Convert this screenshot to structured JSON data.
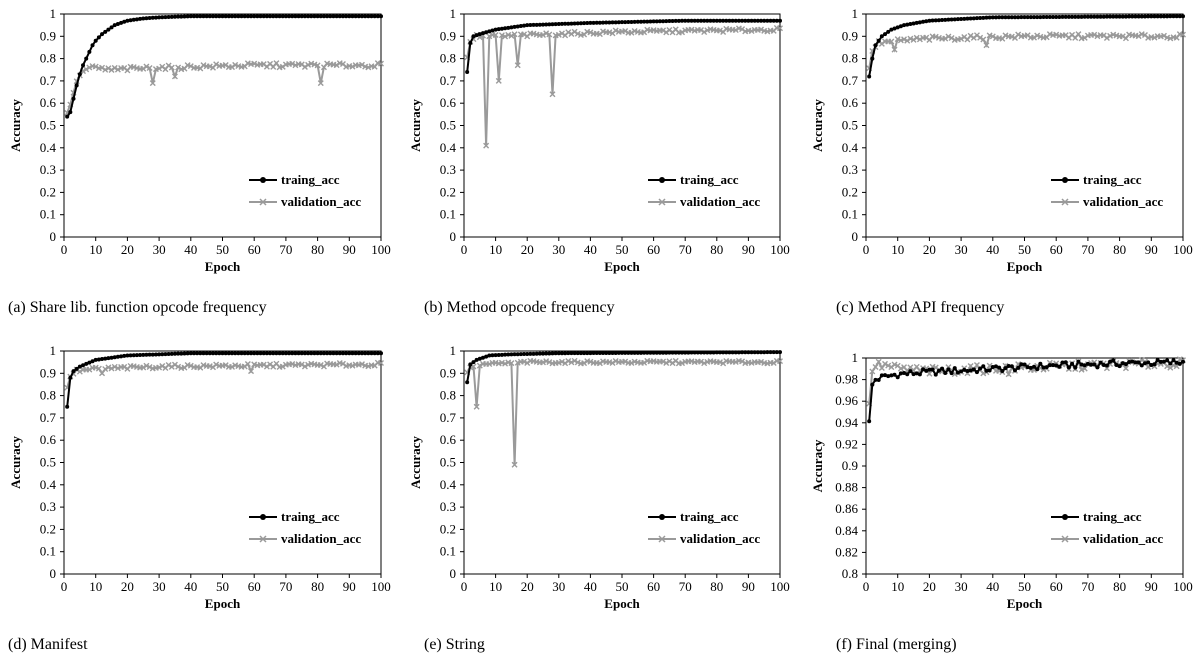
{
  "colors": {
    "train": "#000000",
    "validation": "#9a9a9a",
    "axis": "#000000"
  },
  "chart_data": [
    {
      "type": "line",
      "caption": "(a)  Share lib. function opcode frequency",
      "xlabel": "Epoch",
      "ylabel": "Accuracy",
      "xlim": [
        0,
        100
      ],
      "ylim": [
        0,
        1
      ],
      "x_ticks": [
        "0",
        "10",
        "20",
        "30",
        "40",
        "50",
        "60",
        "70",
        "80",
        "90",
        "100"
      ],
      "y_ticks": [
        "0",
        "0.1",
        "0.2",
        "0.3",
        "0.4",
        "0.5",
        "0.6",
        "0.7",
        "0.8",
        "0.9",
        "1"
      ],
      "legend_position": "lower-right",
      "series": [
        {
          "name": "traing_acc",
          "marker": "circle",
          "anchors": [
            [
              1,
              0.54
            ],
            [
              2,
              0.56
            ],
            [
              3,
              0.62
            ],
            [
              4,
              0.68
            ],
            [
              5,
              0.73
            ],
            [
              6,
              0.77
            ],
            [
              7,
              0.8
            ],
            [
              8,
              0.83
            ],
            [
              9,
              0.86
            ],
            [
              10,
              0.88
            ],
            [
              12,
              0.91
            ],
            [
              14,
              0.93
            ],
            [
              16,
              0.95
            ],
            [
              18,
              0.96
            ],
            [
              20,
              0.97
            ],
            [
              25,
              0.98
            ],
            [
              30,
              0.985
            ],
            [
              40,
              0.99
            ],
            [
              60,
              0.99
            ],
            [
              100,
              0.99
            ]
          ]
        },
        {
          "name": "validation_acc",
          "marker": "cross",
          "noise": 0.01,
          "base": [
            [
              1,
              0.55
            ],
            [
              3,
              0.65
            ],
            [
              5,
              0.73
            ],
            [
              8,
              0.76
            ],
            [
              15,
              0.75
            ],
            [
              30,
              0.76
            ],
            [
              60,
              0.77
            ],
            [
              100,
              0.77
            ]
          ],
          "dips": [
            [
              28,
              0.69
            ],
            [
              35,
              0.72
            ],
            [
              81,
              0.69
            ]
          ]
        }
      ]
    },
    {
      "type": "line",
      "caption": "(b)  Method opcode frequency",
      "xlabel": "Epoch",
      "ylabel": "Accuracy",
      "xlim": [
        0,
        100
      ],
      "ylim": [
        0,
        1
      ],
      "x_ticks": [
        "0",
        "10",
        "20",
        "30",
        "40",
        "50",
        "60",
        "70",
        "80",
        "90",
        "100"
      ],
      "y_ticks": [
        "0",
        "0.1",
        "0.2",
        "0.3",
        "0.4",
        "0.5",
        "0.6",
        "0.7",
        "0.8",
        "0.9",
        "1"
      ],
      "legend_position": "lower-right",
      "series": [
        {
          "name": "traing_acc",
          "marker": "circle",
          "anchors": [
            [
              1,
              0.74
            ],
            [
              2,
              0.87
            ],
            [
              3,
              0.9
            ],
            [
              5,
              0.91
            ],
            [
              10,
              0.93
            ],
            [
              20,
              0.95
            ],
            [
              40,
              0.96
            ],
            [
              70,
              0.97
            ],
            [
              100,
              0.97
            ]
          ]
        },
        {
          "name": "validation_acc",
          "marker": "cross",
          "noise": 0.008,
          "base": [
            [
              1,
              0.8
            ],
            [
              2,
              0.88
            ],
            [
              4,
              0.9
            ],
            [
              10,
              0.9
            ],
            [
              30,
              0.91
            ],
            [
              50,
              0.92
            ],
            [
              100,
              0.93
            ]
          ],
          "dips": [
            [
              7,
              0.41
            ],
            [
              11,
              0.7
            ],
            [
              17,
              0.77
            ],
            [
              28,
              0.64
            ]
          ]
        }
      ]
    },
    {
      "type": "line",
      "caption": "(c)  Method API frequency",
      "xlabel": "Epoch",
      "ylabel": "Accuracy",
      "xlim": [
        0,
        100
      ],
      "ylim": [
        0,
        1
      ],
      "x_ticks": [
        "0",
        "10",
        "20",
        "30",
        "40",
        "50",
        "60",
        "70",
        "80",
        "90",
        "100"
      ],
      "y_ticks": [
        "0",
        "0.1",
        "0.2",
        "0.3",
        "0.4",
        "0.5",
        "0.6",
        "0.7",
        "0.8",
        "0.9",
        "1"
      ],
      "legend_position": "lower-right",
      "series": [
        {
          "name": "traing_acc",
          "marker": "circle",
          "anchors": [
            [
              1,
              0.72
            ],
            [
              2,
              0.8
            ],
            [
              3,
              0.86
            ],
            [
              5,
              0.9
            ],
            [
              8,
              0.93
            ],
            [
              12,
              0.95
            ],
            [
              20,
              0.97
            ],
            [
              40,
              0.985
            ],
            [
              100,
              0.99
            ]
          ]
        },
        {
          "name": "validation_acc",
          "marker": "cross",
          "noise": 0.01,
          "base": [
            [
              1,
              0.75
            ],
            [
              2,
              0.84
            ],
            [
              4,
              0.87
            ],
            [
              10,
              0.88
            ],
            [
              20,
              0.89
            ],
            [
              50,
              0.9
            ],
            [
              100,
              0.9
            ]
          ],
          "dips": [
            [
              9,
              0.84
            ],
            [
              38,
              0.86
            ]
          ]
        }
      ]
    },
    {
      "type": "line",
      "caption": "(d)  Manifest",
      "xlabel": "Epoch",
      "ylabel": "Accuracy",
      "xlim": [
        0,
        100
      ],
      "ylim": [
        0,
        1
      ],
      "x_ticks": [
        "0",
        "10",
        "20",
        "30",
        "40",
        "50",
        "60",
        "70",
        "80",
        "90",
        "100"
      ],
      "y_ticks": [
        "0",
        "0.1",
        "0.2",
        "0.3",
        "0.4",
        "0.5",
        "0.6",
        "0.7",
        "0.8",
        "0.9",
        "1"
      ],
      "legend_position": "lower-right",
      "series": [
        {
          "name": "traing_acc",
          "marker": "circle",
          "anchors": [
            [
              1,
              0.75
            ],
            [
              2,
              0.88
            ],
            [
              3,
              0.91
            ],
            [
              5,
              0.93
            ],
            [
              10,
              0.96
            ],
            [
              20,
              0.98
            ],
            [
              40,
              0.99
            ],
            [
              100,
              0.99
            ]
          ]
        },
        {
          "name": "validation_acc",
          "marker": "cross",
          "noise": 0.008,
          "base": [
            [
              1,
              0.83
            ],
            [
              2,
              0.89
            ],
            [
              4,
              0.91
            ],
            [
              10,
              0.92
            ],
            [
              30,
              0.93
            ],
            [
              100,
              0.94
            ]
          ],
          "dips": [
            [
              12,
              0.9
            ],
            [
              59,
              0.91
            ]
          ]
        }
      ]
    },
    {
      "type": "line",
      "caption": "(e)  String",
      "xlabel": "Epoch",
      "ylabel": "Accuracy",
      "xlim": [
        0,
        100
      ],
      "ylim": [
        0,
        1
      ],
      "x_ticks": [
        "0",
        "10",
        "20",
        "30",
        "40",
        "50",
        "60",
        "70",
        "80",
        "90",
        "100"
      ],
      "y_ticks": [
        "0",
        "0.1",
        "0.2",
        "0.3",
        "0.4",
        "0.5",
        "0.6",
        "0.7",
        "0.8",
        "0.9",
        "1"
      ],
      "legend_position": "lower-right",
      "series": [
        {
          "name": "traing_acc",
          "marker": "circle",
          "anchors": [
            [
              1,
              0.86
            ],
            [
              2,
              0.94
            ],
            [
              4,
              0.96
            ],
            [
              8,
              0.98
            ],
            [
              15,
              0.985
            ],
            [
              30,
              0.99
            ],
            [
              100,
              0.995
            ]
          ]
        },
        {
          "name": "validation_acc",
          "marker": "cross",
          "noise": 0.006,
          "base": [
            [
              1,
              0.9
            ],
            [
              2,
              0.93
            ],
            [
              6,
              0.94
            ],
            [
              20,
              0.95
            ],
            [
              100,
              0.95
            ]
          ],
          "dips": [
            [
              4,
              0.75
            ],
            [
              16,
              0.49
            ]
          ]
        }
      ]
    },
    {
      "type": "line",
      "caption": "(f)  Final (merging)",
      "xlabel": "Epoch",
      "ylabel": "Accuracy",
      "xlim": [
        0,
        100
      ],
      "ylim": [
        0.8,
        1
      ],
      "x_ticks": [
        "0",
        "10",
        "20",
        "30",
        "40",
        "50",
        "60",
        "70",
        "80",
        "90",
        "100"
      ],
      "y_ticks": [
        "0.8",
        "0.82",
        "0.84",
        "0.86",
        "0.88",
        "0.9",
        "0.92",
        "0.94",
        "0.96",
        "0.98",
        "1"
      ],
      "legend_position": "lower-right",
      "series": [
        {
          "name": "traing_acc",
          "marker": "circle",
          "noise": 0.003,
          "anchors": [
            [
              1,
              0.94
            ],
            [
              2,
              0.975
            ],
            [
              3,
              0.98
            ],
            [
              5,
              0.982
            ],
            [
              10,
              0.985
            ],
            [
              20,
              0.987
            ],
            [
              40,
              0.99
            ],
            [
              60,
              0.993
            ],
            [
              80,
              0.995
            ],
            [
              100,
              0.996
            ]
          ]
        },
        {
          "name": "validation_acc",
          "marker": "cross",
          "noise": 0.004,
          "base": [
            [
              1,
              0.955
            ],
            [
              2,
              0.99
            ],
            [
              3,
              0.993
            ],
            [
              6,
              0.993
            ],
            [
              10,
              0.99
            ],
            [
              20,
              0.988
            ],
            [
              40,
              0.99
            ],
            [
              60,
              0.992
            ],
            [
              80,
              0.994
            ],
            [
              100,
              0.995
            ]
          ],
          "dips": [
            [
              45,
              0.985
            ]
          ]
        }
      ]
    }
  ]
}
